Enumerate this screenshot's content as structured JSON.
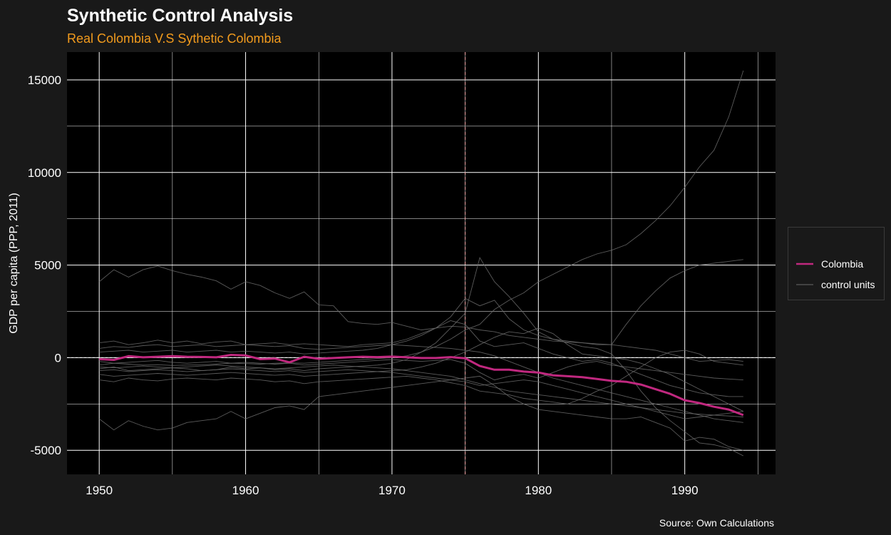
{
  "colors": {
    "background": "#191919",
    "panel": "#000000",
    "grid": "#ffffff",
    "title": "#ffffff",
    "subtitle": "#f29b1d",
    "treated": "#c0287f",
    "control": "#6b6b6b",
    "treatment_line": "#f4a6a6",
    "zero_line": "#ffffff"
  },
  "chart_data": {
    "type": "line",
    "title": "Synthetic Control Analysis",
    "subtitle": "Real Colombia V.S Sythetic Colombia",
    "caption": "Source: Own Calculations",
    "xlabel": "",
    "ylabel": "GDP per capita (PPP, 2011)",
    "xlim": [
      1947.8,
      1996.2
    ],
    "ylim": [
      -6300,
      16500
    ],
    "x_ticks": [
      1950,
      1960,
      1970,
      1980,
      1990
    ],
    "y_ticks": [
      -5000,
      0,
      5000,
      10000,
      15000
    ],
    "x_tick_labels": [
      "1950",
      "1960",
      "1970",
      "1980",
      "1990"
    ],
    "y_tick_labels": [
      "-5000",
      "0",
      "5000",
      "10000",
      "15000"
    ],
    "grid": true,
    "treatment_year": 1975,
    "zero_reference": 0,
    "legend": {
      "position": "right",
      "entries": [
        {
          "label": "Colombia",
          "color": "#c0287f"
        },
        {
          "label": "control units",
          "color": "#6b6b6b"
        }
      ]
    },
    "x": [
      1950,
      1951,
      1952,
      1953,
      1954,
      1955,
      1956,
      1957,
      1958,
      1959,
      1960,
      1961,
      1962,
      1963,
      1964,
      1965,
      1966,
      1967,
      1968,
      1969,
      1970,
      1971,
      1972,
      1973,
      1974,
      1975,
      1976,
      1977,
      1978,
      1979,
      1980,
      1981,
      1982,
      1983,
      1984,
      1985,
      1986,
      1987,
      1988,
      1989,
      1990,
      1991,
      1992,
      1993,
      1994
    ],
    "series": [
      {
        "name": "Colombia",
        "role": "treated",
        "values": [
          -80,
          -120,
          80,
          20,
          50,
          80,
          50,
          40,
          20,
          150,
          120,
          -80,
          -50,
          -250,
          50,
          -60,
          -20,
          20,
          50,
          30,
          60,
          20,
          -20,
          -20,
          30,
          -30,
          -450,
          -650,
          -650,
          -750,
          -800,
          -950,
          -1000,
          -1050,
          -1150,
          -1250,
          -1300,
          -1450,
          -1700,
          -1950,
          -2300,
          -2450,
          -2650,
          -2800,
          -3100
        ]
      },
      {
        "role": "control",
        "values": [
          4100,
          4750,
          4350,
          4750,
          4950,
          4700,
          4500,
          4350,
          4150,
          3700,
          4100,
          3900,
          3500,
          3200,
          3550,
          2850,
          2800,
          1950,
          1850,
          1800,
          1900,
          1700,
          1500,
          1600,
          1700,
          1650,
          1500,
          1400,
          1200,
          1100,
          1000,
          900,
          850,
          800,
          750,
          700,
          600,
          500,
          400,
          200,
          0,
          -200,
          -150,
          -100,
          -200
        ]
      },
      {
        "role": "control",
        "values": [
          -3300,
          -3900,
          -3400,
          -3700,
          -3900,
          -3800,
          -3500,
          -3400,
          -3300,
          -2900,
          -3300,
          -3000,
          -2700,
          -2600,
          -2800,
          -2100,
          -2000,
          -1900,
          -1800,
          -1700,
          -1600,
          -1500,
          -1400,
          -1300,
          -1200,
          -1100,
          -1000,
          -1500,
          -2100,
          -2500,
          -2800,
          -2900,
          -3000,
          -3100,
          -3200,
          -3300,
          -3300,
          -3200,
          -3500,
          -3800,
          -4500,
          -4300,
          -4400,
          -4800,
          -5000
        ]
      },
      {
        "role": "control",
        "values": [
          800,
          900,
          700,
          800,
          950,
          800,
          900,
          750,
          850,
          900,
          700,
          750,
          800,
          700,
          750,
          700,
          650,
          600,
          700,
          750,
          800,
          1000,
          1300,
          1600,
          2200,
          3200,
          2800,
          3100,
          2100,
          1500,
          1200,
          1000,
          900,
          800,
          700,
          700,
          1800,
          2800,
          3600,
          4300,
          4700,
          5000,
          5100,
          5200,
          5300
        ]
      },
      {
        "role": "control",
        "values": [
          -600,
          -500,
          -700,
          -650,
          -600,
          -550,
          -600,
          -700,
          -650,
          -500,
          -600,
          -550,
          -650,
          -600,
          -700,
          -600,
          -550,
          -500,
          -450,
          -400,
          -300,
          -100,
          300,
          800,
          1600,
          2400,
          5400,
          4100,
          3300,
          2400,
          1400,
          1000,
          800,
          600,
          500,
          200,
          -700,
          -1800,
          -2700,
          -3400,
          -4000,
          -4600,
          -4700,
          -4900,
          -5300
        ]
      },
      {
        "role": "control",
        "values": [
          -400,
          -300,
          -350,
          -400,
          -380,
          -420,
          -400,
          -380,
          -350,
          -300,
          -320,
          -350,
          -300,
          -280,
          -300,
          -250,
          -200,
          -150,
          -100,
          -50,
          0,
          100,
          300,
          600,
          1000,
          1500,
          1800,
          2600,
          3100,
          3500,
          4100,
          4500,
          4900,
          5300,
          5600,
          5800,
          6100,
          6700,
          7400,
          8200,
          9200,
          10300,
          11200,
          13000,
          15500
        ]
      },
      {
        "role": "control",
        "values": [
          300,
          350,
          400,
          300,
          350,
          400,
          300,
          350,
          400,
          300,
          350,
          300,
          250,
          300,
          200,
          250,
          300,
          350,
          400,
          500,
          700,
          900,
          1200,
          1600,
          2000,
          1800,
          900,
          600,
          700,
          800,
          500,
          200,
          0,
          -200,
          -100,
          -300,
          -600,
          -900,
          -1200,
          -1500,
          -1700,
          -1900,
          -2000,
          -2100,
          -2100
        ]
      },
      {
        "role": "control",
        "values": [
          -900,
          -1000,
          -950,
          -900,
          -850,
          -900,
          -950,
          -900,
          -850,
          -800,
          -850,
          -900,
          -950,
          -900,
          -1000,
          -950,
          -900,
          -850,
          -800,
          -750,
          -700,
          -650,
          -500,
          -300,
          0,
          300,
          700,
          1100,
          1400,
          1300,
          1600,
          1300,
          700,
          200,
          100,
          0,
          -100,
          -300,
          -600,
          -900,
          -1300,
          -1700,
          -2100,
          -2500,
          -2900
        ]
      },
      {
        "role": "control",
        "values": [
          -1200,
          -1300,
          -1100,
          -1200,
          -1250,
          -1150,
          -1100,
          -1150,
          -1200,
          -1100,
          -1150,
          -1200,
          -1300,
          -1250,
          -1400,
          -1300,
          -1250,
          -1200,
          -1150,
          -1100,
          -1050,
          -1000,
          -1100,
          -1200,
          -1350,
          -1500,
          -1800,
          -1900,
          -2000,
          -2200,
          -2300,
          -2400,
          -2500,
          -2200,
          -1800,
          -1500,
          -1000,
          -500,
          0,
          300,
          400,
          200,
          -200,
          -300,
          -400
        ]
      },
      {
        "role": "control",
        "values": [
          -200,
          -300,
          -250,
          -200,
          -150,
          -250,
          -300,
          -250,
          -200,
          -300,
          -250,
          -300,
          -350,
          -300,
          -400,
          -350,
          -300,
          -250,
          -200,
          -150,
          -100,
          -150,
          -200,
          -150,
          -100,
          -300,
          -800,
          -1200,
          -1000,
          -900,
          -1100,
          -800,
          -500,
          -300,
          -200,
          -400,
          -500,
          -600,
          -700,
          -800,
          -900,
          -1000,
          -1100,
          -1150,
          -1200
        ]
      },
      {
        "role": "control",
        "values": [
          -700,
          -650,
          -750,
          -700,
          -650,
          -700,
          -750,
          -700,
          -650,
          -600,
          -650,
          -700,
          -750,
          -700,
          -800,
          -750,
          -700,
          -650,
          -700,
          -750,
          -800,
          -900,
          -1000,
          -1100,
          -1200,
          -1300,
          -1500,
          -1400,
          -1300,
          -1200,
          -1300,
          -1500,
          -1700,
          -1900,
          -2100,
          -2300,
          -2500,
          -2700,
          -2900,
          -3100,
          -3300,
          -3200,
          -3100,
          -3000,
          -2900
        ]
      },
      {
        "role": "control",
        "values": [
          500,
          600,
          550,
          650,
          700,
          600,
          650,
          700,
          600,
          650,
          700,
          650,
          600,
          650,
          500,
          450,
          500,
          550,
          600,
          650,
          700,
          650,
          600,
          550,
          500,
          400,
          300,
          100,
          -200,
          -500,
          -800,
          -1100,
          -1300,
          -1500,
          -1700,
          -1900,
          -2100,
          -2300,
          -2500,
          -2700,
          -2900,
          -3100,
          -3300,
          -3400,
          -3500
        ]
      },
      {
        "role": "control",
        "values": [
          -500,
          -550,
          -500,
          -450,
          -500,
          -550,
          -500,
          -450,
          -400,
          -450,
          -500,
          -550,
          -600,
          -550,
          -500,
          -450,
          -400,
          -450,
          -500,
          -550,
          -600,
          -700,
          -800,
          -900,
          -1000,
          -1200,
          -1400,
          -1600,
          -1800,
          -1900,
          -2000,
          -2100,
          -2200,
          -2300,
          -2400,
          -2500,
          -2600,
          -2700,
          -2800,
          -2900,
          -3000,
          -3050,
          -3100,
          -3150,
          -3200
        ]
      }
    ]
  }
}
